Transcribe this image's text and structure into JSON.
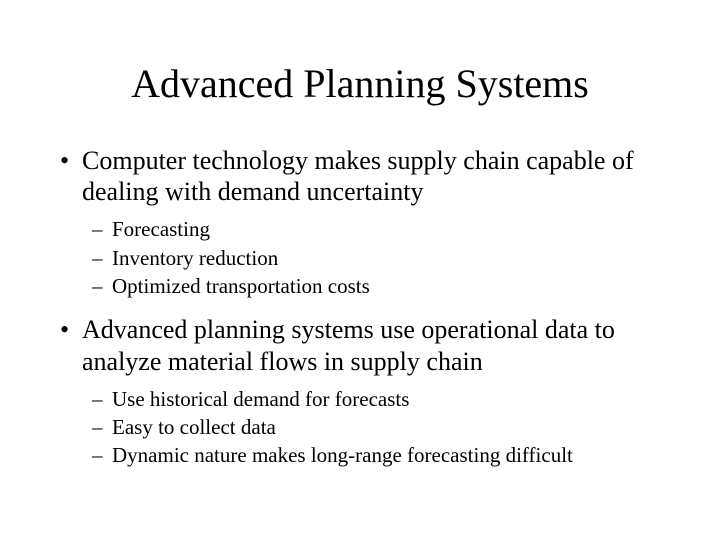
{
  "title": "Advanced Planning Systems",
  "bullets": [
    {
      "text": "Computer technology makes supply chain capable of dealing with demand uncertainty",
      "subs": [
        "Forecasting",
        "Inventory reduction",
        "Optimized transportation costs"
      ]
    },
    {
      "text": "Advanced planning systems use operational data to analyze material flows in supply chain",
      "subs": [
        "Use historical demand for forecasts",
        "Easy to collect data",
        "Dynamic nature makes long-range forecasting difficult"
      ]
    }
  ],
  "colors": {
    "background": "#ffffff",
    "text": "#000000"
  },
  "typography": {
    "title_fontsize": 40,
    "bullet_fontsize": 26,
    "sub_fontsize": 21,
    "font_family": "Times New Roman"
  }
}
